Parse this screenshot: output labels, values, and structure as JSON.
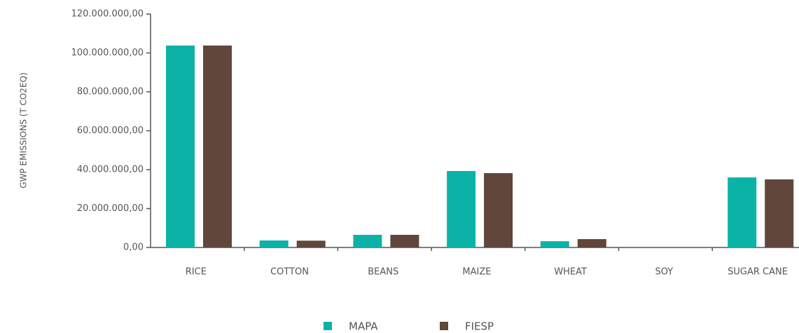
{
  "chart_data": {
    "type": "bar",
    "y_axis_label": "GWP EMISSIONS (T CO2EQ)",
    "categories": [
      "RICE",
      "COTTON",
      "BEANS",
      "MAIZE",
      "WHEAT",
      "SOY",
      "SUGAR CANE"
    ],
    "series": [
      {
        "name": "MAPA",
        "color": "#0bb3a7",
        "values": [
          103800000,
          3600000,
          6500000,
          39300000,
          3200000,
          0,
          36000000
        ]
      },
      {
        "name": "FIESP",
        "color": "#60463b",
        "values": [
          103800000,
          3500000,
          6500000,
          38200000,
          4300000,
          0,
          35000000
        ]
      }
    ],
    "ylim": [
      0,
      120000000
    ],
    "yticks": [
      {
        "value": 0,
        "label": "0,00"
      },
      {
        "value": 20000000,
        "label": "20.000.000,00"
      },
      {
        "value": 40000000,
        "label": "40.000.000,00"
      },
      {
        "value": 60000000,
        "label": "60.000.000,00"
      },
      {
        "value": 80000000,
        "label": "80.000.000,00"
      },
      {
        "value": 100000000,
        "label": "100.000.000,00"
      },
      {
        "value": 120000000,
        "label": "120.000.000,00"
      }
    ],
    "legend": "bottom"
  }
}
